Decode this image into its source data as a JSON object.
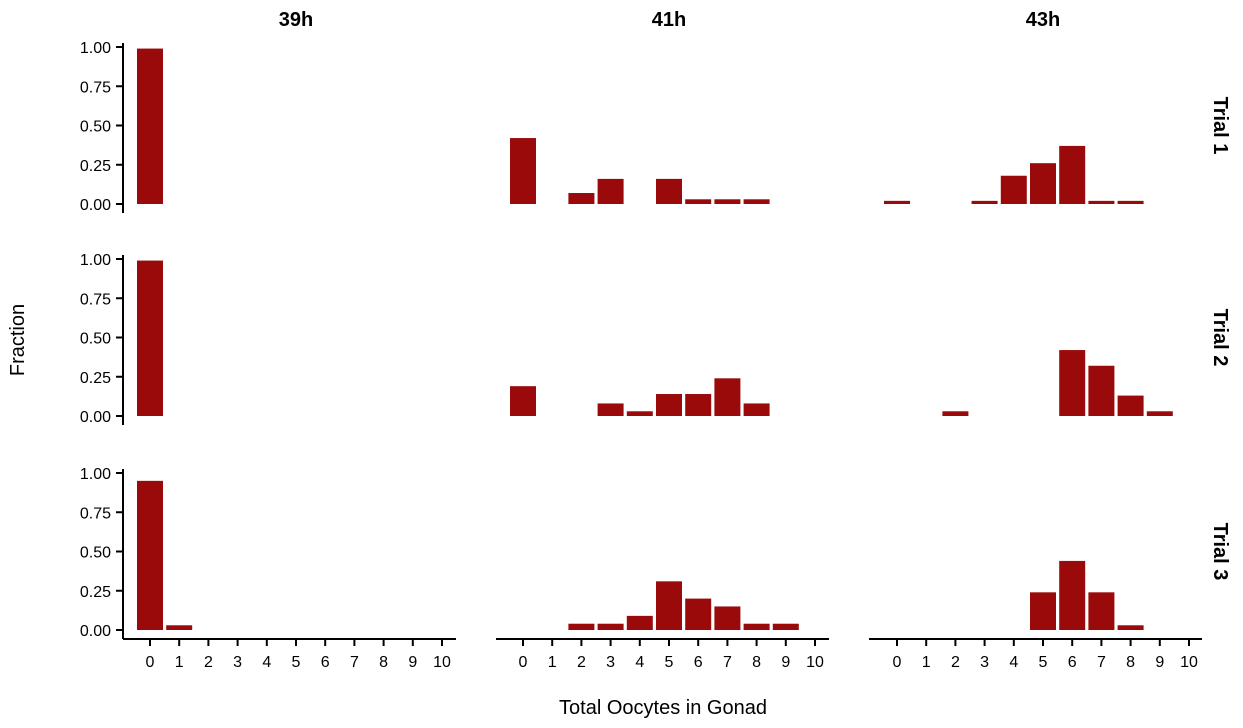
{
  "chart_data": {
    "type": "bar",
    "xlabel": "Total Oocytes in Gonad",
    "ylabel": "Fraction",
    "bar_color": "#9b0a0a",
    "x_categories": [
      "0",
      "1",
      "2",
      "3",
      "4",
      "5",
      "6",
      "7",
      "8",
      "9",
      "10"
    ],
    "y_ticks": [
      "0.00",
      "0.25",
      "0.50",
      "0.75",
      "1.00"
    ],
    "ylim": [
      0,
      1
    ],
    "columns": [
      "39h",
      "41h",
      "43h"
    ],
    "rows": [
      "Trial 1",
      "Trial 2",
      "Trial 3"
    ],
    "panels": [
      {
        "column": "39h",
        "row": "Trial 1",
        "values": [
          0.99,
          0,
          0,
          0,
          0,
          0,
          0,
          0,
          0,
          0,
          0
        ]
      },
      {
        "column": "41h",
        "row": "Trial 1",
        "values": [
          0.42,
          0,
          0.07,
          0.16,
          0,
          0.16,
          0.03,
          0.03,
          0.03,
          0,
          0
        ]
      },
      {
        "column": "43h",
        "row": "Trial 1",
        "values": [
          0.02,
          0,
          0,
          0.02,
          0.18,
          0.26,
          0.37,
          0.02,
          0.02,
          0,
          0
        ]
      },
      {
        "column": "39h",
        "row": "Trial 2",
        "values": [
          0.99,
          0,
          0,
          0,
          0,
          0,
          0,
          0,
          0,
          0,
          0
        ]
      },
      {
        "column": "41h",
        "row": "Trial 2",
        "values": [
          0.19,
          0,
          0,
          0.08,
          0.03,
          0.14,
          0.14,
          0.24,
          0.08,
          0,
          0
        ]
      },
      {
        "column": "43h",
        "row": "Trial 2",
        "values": [
          0,
          0,
          0.03,
          0,
          0,
          0,
          0.42,
          0.32,
          0.13,
          0.03,
          0
        ]
      },
      {
        "column": "39h",
        "row": "Trial 3",
        "values": [
          0.95,
          0.03,
          0,
          0,
          0,
          0,
          0,
          0,
          0,
          0,
          0
        ]
      },
      {
        "column": "41h",
        "row": "Trial 3",
        "values": [
          0,
          0,
          0.04,
          0.04,
          0.09,
          0.31,
          0.2,
          0.15,
          0.04,
          0.04,
          0
        ]
      },
      {
        "column": "43h",
        "row": "Trial 3",
        "values": [
          0,
          0,
          0,
          0,
          0,
          0.24,
          0.44,
          0.24,
          0.03,
          0,
          0
        ]
      }
    ]
  }
}
